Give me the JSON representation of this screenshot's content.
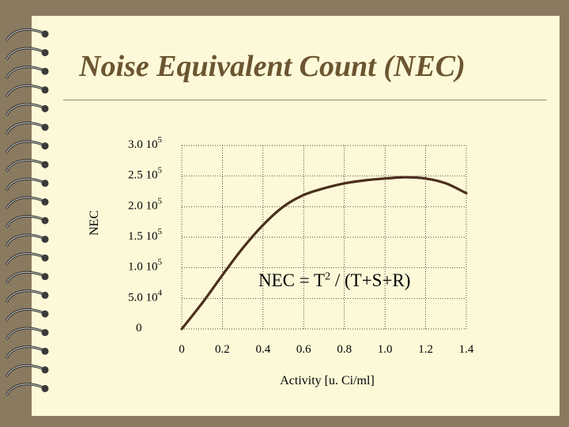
{
  "slide": {
    "title": "Noise Equivalent Count (NEC)",
    "formula": {
      "pre": "NEC = T",
      "sup": "2",
      "post": " / (T+S+R)"
    }
  },
  "chart_data": {
    "type": "line",
    "title": "",
    "xlabel": "Activity [u. Ci/ml]",
    "ylabel": "NEC",
    "xlim": [
      0,
      1.4
    ],
    "ylim": [
      0,
      300000
    ],
    "grid": true,
    "x_ticks": [
      "0",
      "0.2",
      "0.4",
      "0.6",
      "0.8",
      "1.0",
      "1.2",
      "1.4"
    ],
    "y_ticks": [
      {
        "mant": "0",
        "exp": ""
      },
      {
        "mant": "5.0 10",
        "exp": "4"
      },
      {
        "mant": "1.0 10",
        "exp": "5"
      },
      {
        "mant": "1.5 10",
        "exp": "5"
      },
      {
        "mant": "2.0 10",
        "exp": "5"
      },
      {
        "mant": "2.5 10",
        "exp": "5"
      },
      {
        "mant": "3.0 10",
        "exp": "5"
      }
    ],
    "series": [
      {
        "color": "#4a2e1c",
        "x": [
          0,
          0.1,
          0.2,
          0.3,
          0.4,
          0.5,
          0.6,
          0.7,
          0.8,
          0.9,
          1.0,
          1.1,
          1.2,
          1.3,
          1.4
        ],
        "y": [
          0,
          42000,
          88000,
          132000,
          170000,
          200000,
          219000,
          230000,
          238000,
          243000,
          246000,
          248000,
          246000,
          238000,
          222000
        ]
      }
    ]
  },
  "colors": {
    "background": "#8a7a60",
    "slide": "#fdf9d8",
    "title": "#6b5530",
    "curve": "#4a2e1c"
  }
}
